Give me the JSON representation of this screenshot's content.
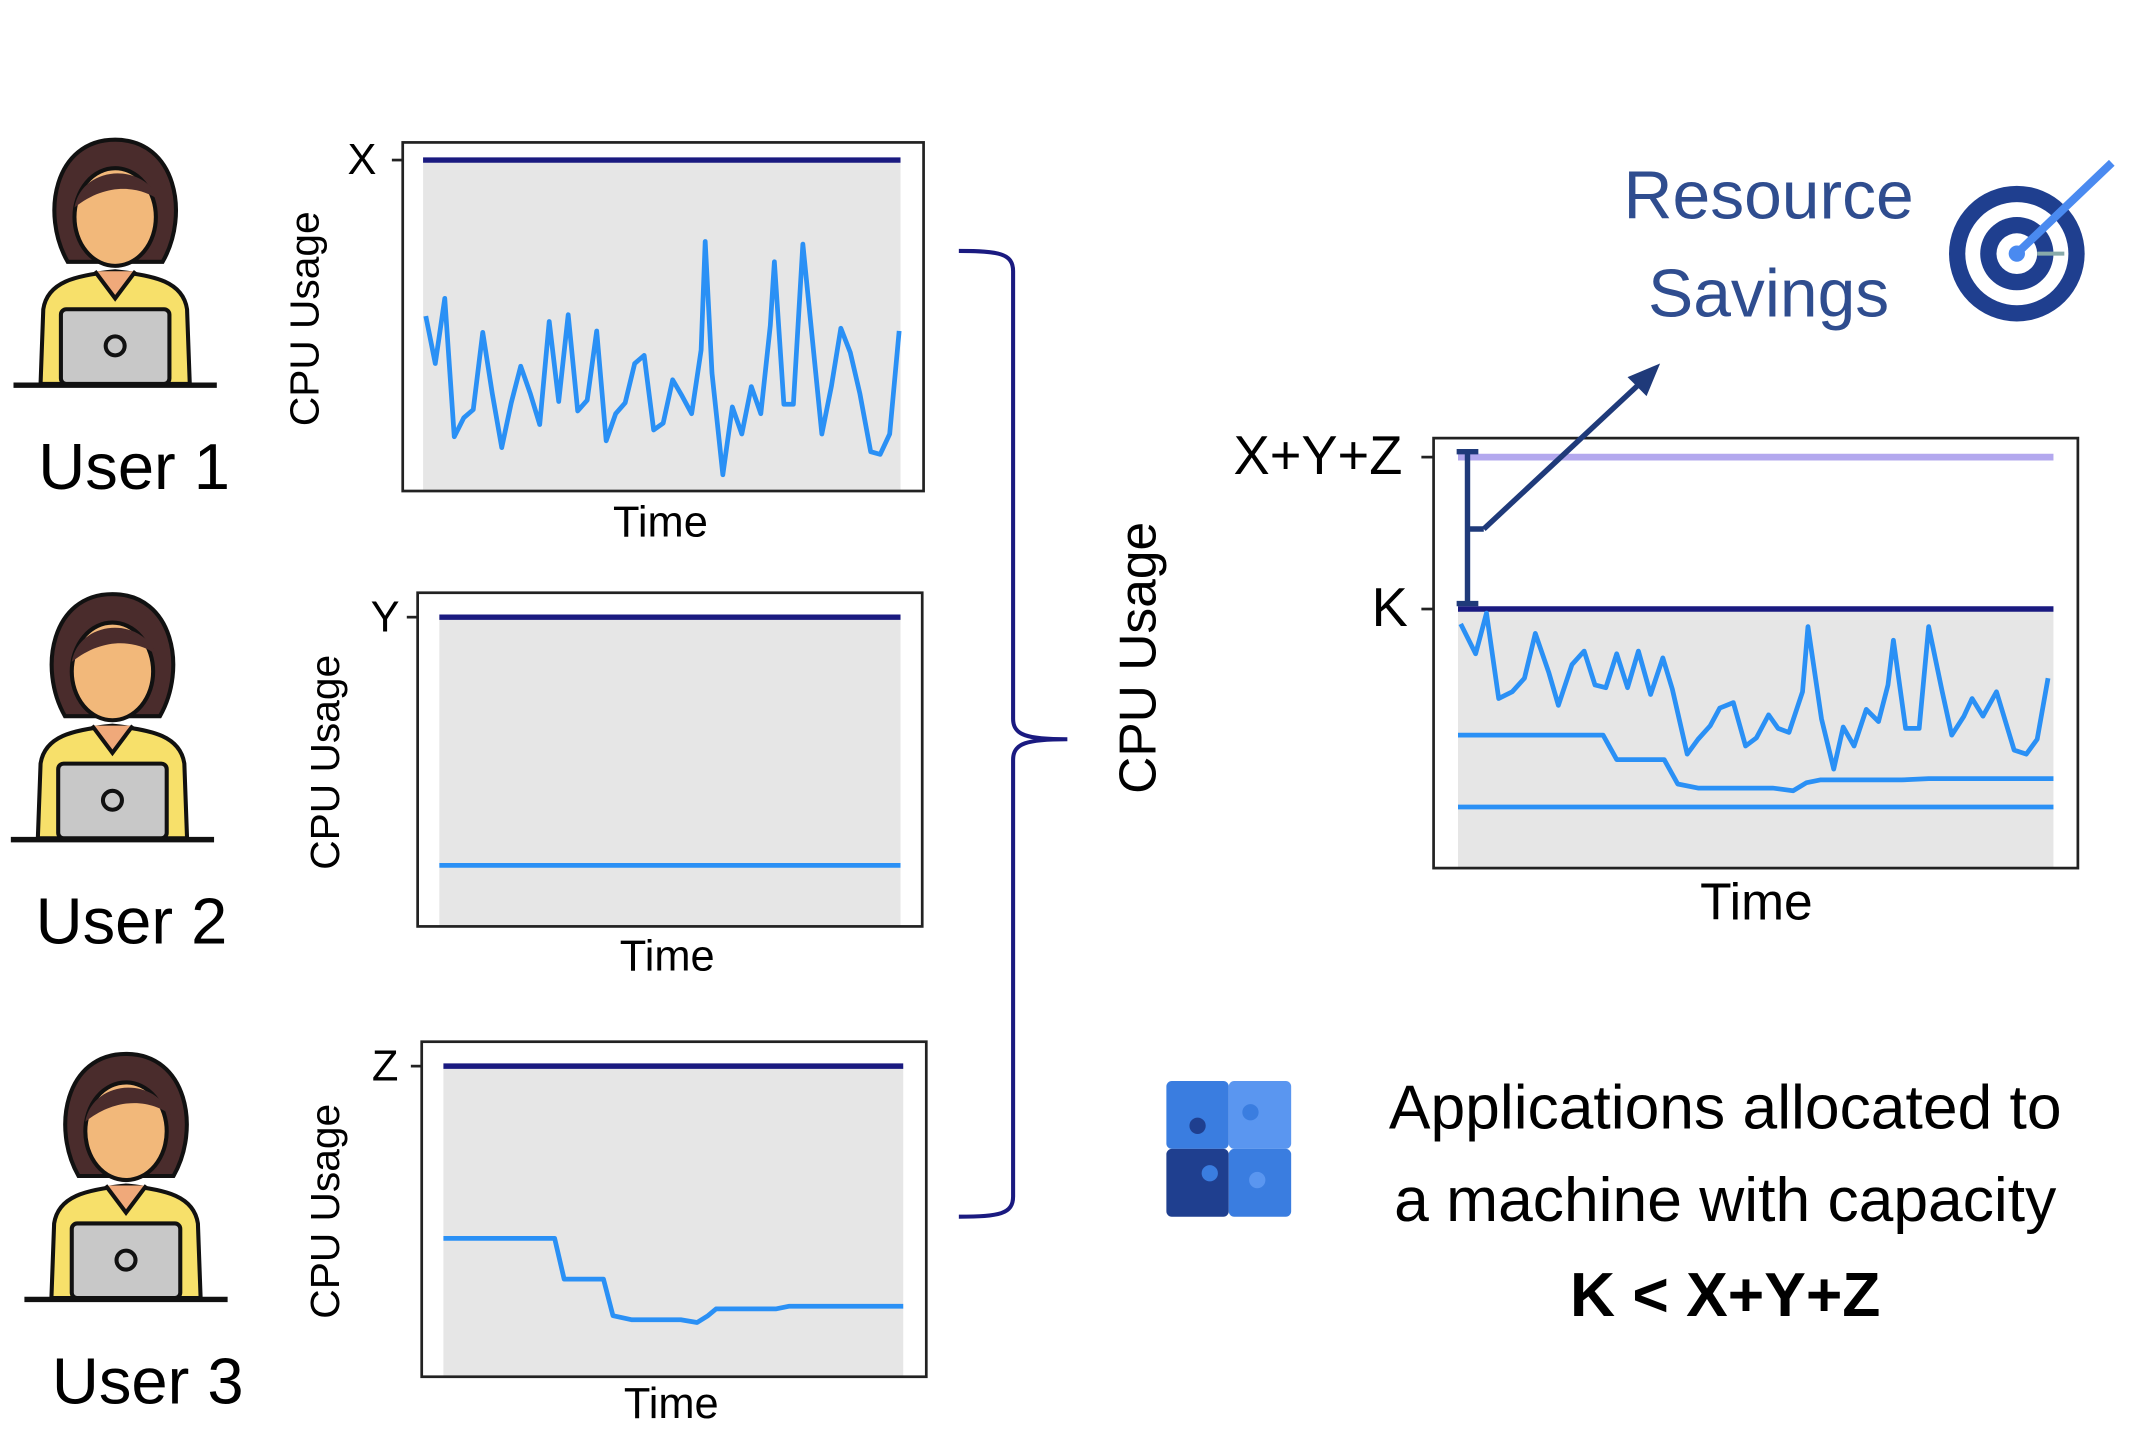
{
  "users": [
    {
      "label": "User 1"
    },
    {
      "label": "User 2"
    },
    {
      "label": "User 3"
    }
  ],
  "charts": [
    {
      "y_label": "CPU Usage",
      "x_label": "Time",
      "tick": "X"
    },
    {
      "y_label": "CPU Usage",
      "x_label": "Time",
      "tick": "Y"
    },
    {
      "y_label": "CPU Usage",
      "x_label": "Time",
      "tick": "Z"
    }
  ],
  "combined_chart": {
    "y_label": "CPU Usage",
    "x_label": "Time",
    "ticks": [
      "X+Y+Z",
      "K"
    ]
  },
  "callout": {
    "lines": [
      "Resource",
      "Savings"
    ]
  },
  "caption": {
    "lines": [
      "Applications allocated to",
      "a machine with capacity"
    ],
    "emphasis": "K < X+Y+Z"
  }
}
